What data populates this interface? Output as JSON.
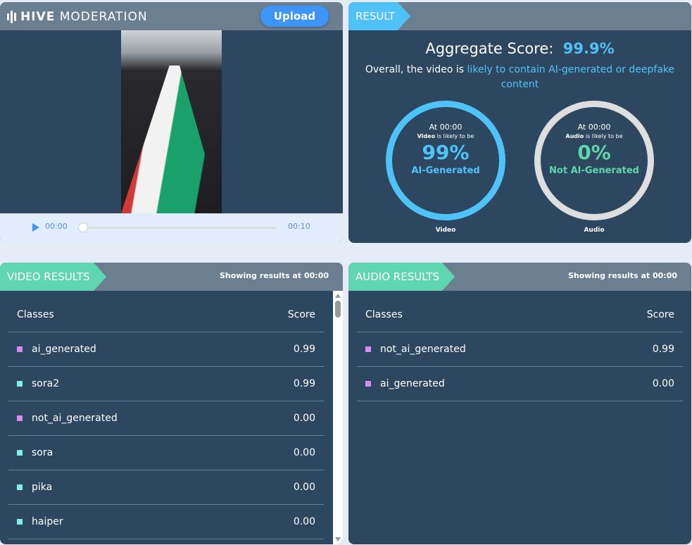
{
  "header": {
    "logo_bold": "HIVE",
    "logo_light": "MODERATION",
    "upload_label": "Upload"
  },
  "player": {
    "current_time": "00:00",
    "duration": "00:10",
    "progress": 0
  },
  "result": {
    "tag": "RESULT",
    "aggregate_label": "Aggregate Score:",
    "aggregate_value": "99.9%",
    "summary_prefix": "Overall, the video is",
    "summary_highlight": "likely to contain AI-generated or deepfake content",
    "video": {
      "at": "At 00:00",
      "kind": "Video",
      "likely": "is likely to be",
      "percent": "99%",
      "verdict": "AI-Generated",
      "caption": "Video",
      "color": "#4fc3f7"
    },
    "audio": {
      "at": "At 00:00",
      "kind": "Audio",
      "likely": "is likely to be",
      "percent": "0%",
      "verdict": "Not AI-Generated",
      "caption": "Audio",
      "color": "#5fd6a8"
    }
  },
  "video_results": {
    "tag": "VIDEO RESULTS",
    "showing_prefix": "Showing results at",
    "showing_time": "00:00",
    "col_class": "Classes",
    "col_score": "Score",
    "rows": [
      {
        "name": "ai_generated",
        "score": "0.99",
        "color": "#d98cf0"
      },
      {
        "name": "sora2",
        "score": "0.99",
        "color": "#7ef0e6"
      },
      {
        "name": "not_ai_generated",
        "score": "0.00",
        "color": "#d98cf0"
      },
      {
        "name": "sora",
        "score": "0.00",
        "color": "#7ef0e6"
      },
      {
        "name": "pika",
        "score": "0.00",
        "color": "#7ef0e6"
      },
      {
        "name": "haiper",
        "score": "0.00",
        "color": "#7ef0e6"
      }
    ]
  },
  "audio_results": {
    "tag": "AUDIO RESULTS",
    "showing_prefix": "Showing results at",
    "showing_time": "00:00",
    "col_class": "Classes",
    "col_score": "Score",
    "rows": [
      {
        "name": "not_ai_generated",
        "score": "0.99",
        "color": "#d98cf0"
      },
      {
        "name": "ai_generated",
        "score": "0.00",
        "color": "#d98cf0"
      }
    ]
  }
}
